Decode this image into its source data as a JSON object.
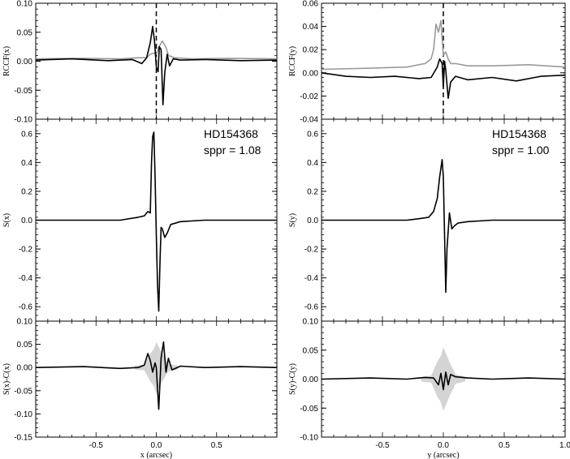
{
  "chart_data": [
    {
      "type": "line",
      "panel": "left-top",
      "ylabel": "RCCF(x)",
      "xlim": [
        -1.0,
        1.0
      ],
      "ylim": [
        -0.1,
        0.1
      ],
      "yticks": [
        -0.1,
        -0.05,
        0.0,
        0.05,
        0.1
      ],
      "ytick_labels": [
        "-0.10",
        "-0.05",
        "0.00",
        "0.05",
        "0.10"
      ],
      "vline_x": 0.0,
      "series": [
        {
          "color": "#9a9a9a",
          "x": [
            -1.0,
            -0.6,
            -0.3,
            -0.15,
            -0.08,
            -0.05,
            -0.02,
            0.0,
            0.02,
            0.05,
            0.08,
            0.1,
            0.15,
            0.3,
            0.6,
            1.0
          ],
          "y": [
            0.004,
            0.005,
            0.004,
            0.006,
            0.006,
            0.012,
            0.014,
            0.012,
            0.024,
            0.035,
            0.024,
            0.01,
            0.006,
            0.004,
            0.005,
            0.004
          ]
        },
        {
          "color": "#000000",
          "x": [
            -1.0,
            -0.7,
            -0.4,
            -0.2,
            -0.12,
            -0.08,
            -0.05,
            -0.03,
            -0.015,
            0.0,
            0.015,
            0.025,
            0.04,
            0.055,
            0.07,
            0.09,
            0.11,
            0.14,
            0.2,
            0.4,
            0.7,
            1.0
          ],
          "y": [
            0.002,
            0.004,
            0.001,
            0.003,
            -0.004,
            0.006,
            0.032,
            0.06,
            0.035,
            -0.01,
            -0.018,
            0.025,
            0.02,
            -0.075,
            -0.02,
            0.012,
            -0.008,
            0.004,
            0.002,
            0.003,
            0.001,
            0.002
          ]
        }
      ]
    },
    {
      "type": "line",
      "panel": "left-mid",
      "ylabel": "S(x)",
      "annotation": [
        "HD154368",
        "sppr = 1.08"
      ],
      "xlim": [
        -1.0,
        1.0
      ],
      "ylim": [
        -0.7,
        0.7
      ],
      "yticks": [
        -0.6,
        -0.4,
        -0.2,
        0.0,
        0.2,
        0.4,
        0.6
      ],
      "ytick_labels": [
        "-0.6",
        "-0.4",
        "-0.2",
        "0.0",
        "0.2",
        "0.4",
        "0.6"
      ],
      "series": [
        {
          "color": "#000000",
          "x": [
            -1.0,
            -0.5,
            -0.3,
            -0.15,
            -0.1,
            -0.07,
            -0.05,
            -0.04,
            -0.03,
            -0.02,
            -0.01,
            0.0,
            0.01,
            0.02,
            0.03,
            0.04,
            0.05,
            0.07,
            0.09,
            0.12,
            0.2,
            0.4,
            0.7,
            1.0
          ],
          "y": [
            0.0,
            0.0,
            0.0,
            0.02,
            0.03,
            0.06,
            0.05,
            0.4,
            0.58,
            0.61,
            0.3,
            -0.1,
            -0.45,
            -0.63,
            -0.3,
            -0.05,
            -0.06,
            -0.12,
            -0.09,
            -0.03,
            -0.01,
            0.0,
            0.0,
            0.0
          ]
        }
      ]
    },
    {
      "type": "line",
      "panel": "left-bottom",
      "ylabel": "S(x)-C(x)",
      "xlabel": "x (arcsec)",
      "xlim": [
        -1.0,
        1.0
      ],
      "ylim": [
        -0.15,
        0.1
      ],
      "yticks": [
        -0.15,
        -0.1,
        -0.05,
        0.0,
        0.05,
        0.1
      ],
      "ytick_labels": [
        "-0.15",
        "-0.10",
        "-0.05",
        "0.00",
        "0.05",
        "0.10"
      ],
      "xticks": [
        -0.5,
        0.0,
        0.5
      ],
      "xtick_labels": [
        "-0.5",
        "0.0",
        "0.5"
      ],
      "series": [
        {
          "color": "#000000",
          "x": [
            -1.0,
            -0.6,
            -0.3,
            -0.15,
            -0.1,
            -0.07,
            -0.05,
            -0.03,
            -0.01,
            0.0,
            0.02,
            0.04,
            0.06,
            0.08,
            0.1,
            0.13,
            0.2,
            0.4,
            0.7,
            1.0
          ],
          "y": [
            0.0,
            0.002,
            -0.002,
            0.0,
            0.005,
            0.03,
            0.015,
            -0.01,
            0.01,
            0.0,
            -0.09,
            0.02,
            0.055,
            -0.01,
            0.02,
            -0.005,
            0.003,
            0.0,
            0.002,
            0.0
          ]
        }
      ]
    },
    {
      "type": "line",
      "panel": "right-top",
      "ylabel": "RCCF(y)",
      "xlim": [
        -1.0,
        1.0
      ],
      "ylim": [
        -0.04,
        0.06
      ],
      "yticks": [
        -0.04,
        -0.02,
        0.0,
        0.02,
        0.04,
        0.06
      ],
      "ytick_labels": [
        "-0.04",
        "-0.02",
        "0.00",
        "0.02",
        "0.04",
        "0.06"
      ],
      "vline_x": 0.0,
      "series": [
        {
          "color": "#9a9a9a",
          "x": [
            -1.0,
            -0.6,
            -0.3,
            -0.15,
            -0.1,
            -0.08,
            -0.06,
            -0.04,
            -0.02,
            0.0,
            0.02,
            0.04,
            0.06,
            0.1,
            0.2,
            0.4,
            0.7,
            1.0
          ],
          "y": [
            0.003,
            0.004,
            0.005,
            0.008,
            0.012,
            0.02,
            0.042,
            0.035,
            0.045,
            0.015,
            0.018,
            0.012,
            0.008,
            0.008,
            0.006,
            0.006,
            0.007,
            0.005
          ]
        },
        {
          "color": "#000000",
          "x": [
            -1.0,
            -0.8,
            -0.6,
            -0.4,
            -0.2,
            -0.1,
            -0.05,
            -0.03,
            -0.01,
            0.0,
            0.01,
            0.02,
            0.04,
            0.06,
            0.1,
            0.2,
            0.4,
            0.6,
            0.8,
            1.0
          ],
          "y": [
            0.0,
            -0.003,
            -0.004,
            -0.003,
            -0.005,
            -0.004,
            0.005,
            0.012,
            0.008,
            -0.012,
            0.01,
            0.002,
            -0.022,
            -0.008,
            -0.003,
            -0.006,
            -0.004,
            -0.007,
            -0.003,
            -0.002
          ]
        }
      ]
    },
    {
      "type": "line",
      "panel": "right-mid",
      "ylabel": "S(y)",
      "annotation": [
        "HD154368",
        "sppr = 1.00"
      ],
      "xlim": [
        -1.0,
        1.0
      ],
      "ylim": [
        -0.7,
        0.7
      ],
      "yticks": [
        -0.6,
        -0.4,
        -0.2,
        0.0,
        0.2,
        0.4,
        0.6
      ],
      "ytick_labels": [
        "-0.6",
        "-0.4",
        "-0.2",
        "0.0",
        "0.2",
        "0.4",
        "0.6"
      ],
      "series": [
        {
          "color": "#000000",
          "x": [
            -1.0,
            -0.5,
            -0.3,
            -0.2,
            -0.12,
            -0.08,
            -0.05,
            -0.03,
            -0.01,
            0.0,
            0.01,
            0.02,
            0.03,
            0.05,
            0.07,
            0.09,
            0.12,
            0.2,
            0.4,
            0.7,
            1.0
          ],
          "y": [
            0.0,
            0.0,
            0.0,
            0.01,
            0.02,
            0.06,
            0.15,
            0.3,
            0.42,
            0.3,
            -0.1,
            -0.5,
            -0.2,
            0.05,
            -0.06,
            -0.04,
            -0.02,
            -0.01,
            0.0,
            0.0,
            0.0
          ]
        }
      ]
    },
    {
      "type": "line",
      "panel": "right-bottom",
      "ylabel": "S(y)-C(y)",
      "xlabel": "y (arcsec)",
      "xlim": [
        -1.0,
        1.0
      ],
      "ylim": [
        -0.1,
        0.1
      ],
      "yticks": [
        -0.1,
        -0.05,
        0.0,
        0.05,
        0.1
      ],
      "ytick_labels": [
        "-0.10",
        "-0.05",
        "0.00",
        "0.05",
        "0.10"
      ],
      "xticks": [
        -0.5,
        0.0,
        0.5,
        1.0
      ],
      "xtick_labels": [
        "-0.5",
        "0.0",
        "0.5",
        "1.0"
      ],
      "series": [
        {
          "color": "#000000",
          "x": [
            -1.0,
            -0.6,
            -0.3,
            -0.15,
            -0.08,
            -0.04,
            -0.02,
            0.0,
            0.02,
            0.04,
            0.06,
            0.1,
            0.2,
            0.4,
            0.7,
            1.0
          ],
          "y": [
            0.0,
            0.002,
            0.0,
            0.003,
            0.002,
            -0.01,
            0.01,
            -0.018,
            0.012,
            -0.01,
            0.008,
            0.004,
            0.002,
            0.0,
            0.002,
            0.0
          ]
        }
      ]
    }
  ]
}
